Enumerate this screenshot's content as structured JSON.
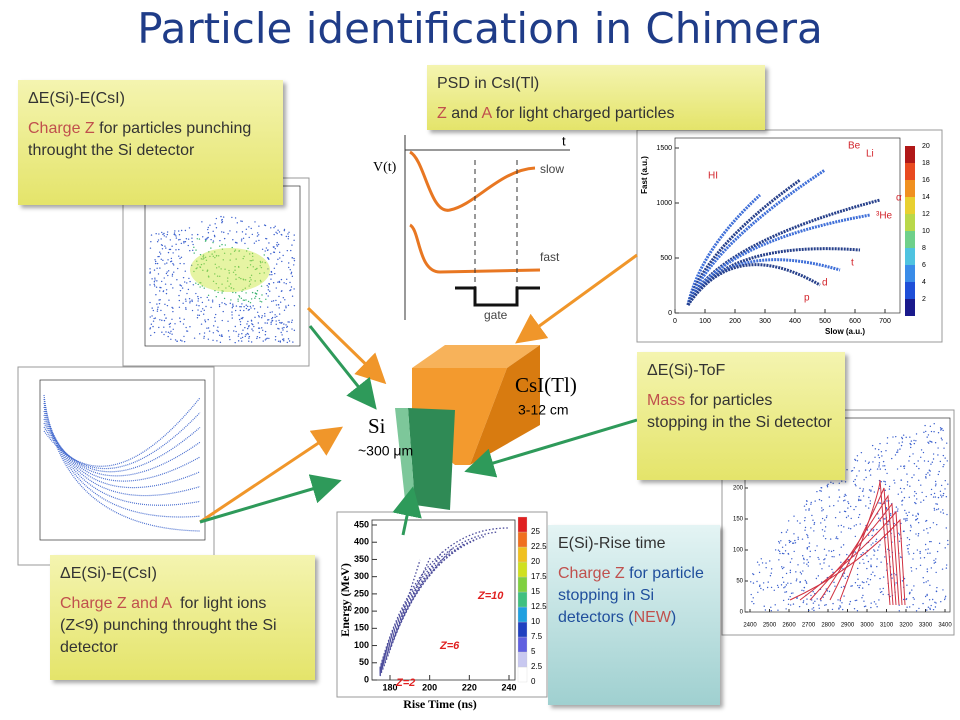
{
  "title": "Particle identification in Chimera",
  "boxes": [
    {
      "heading": "ΔE(Si)-E(CsI)",
      "body": [
        {
          "text": "Charge Z",
          "color": "#c0504d"
        },
        {
          "text": " for particles punching throught the Si detector",
          "color": "#333333"
        }
      ]
    },
    {
      "heading": "PSD in CsI(Tl)",
      "body": [
        {
          "text": "Z",
          "color": "#c0504d"
        },
        {
          "text": " and ",
          "color": "#333333"
        },
        {
          "text": "A",
          "color": "#c0504d"
        },
        {
          "text": " for light charged particles",
          "color": "#333333"
        }
      ]
    },
    {
      "heading": "ΔE(Si)-ToF",
      "body": [
        {
          "text": "Mass",
          "color": "#c0504d"
        },
        {
          "text": " for particles stopping in the Si detector",
          "color": "#333333"
        }
      ]
    },
    {
      "heading": "ΔE(Si)-E(CsI)",
      "body": [
        {
          "text": "Charge Z and A",
          "color": "#c0504d"
        },
        {
          "text": "  for light ions (Z<9) punching throught the Si detector",
          "color": "#333333"
        }
      ]
    },
    {
      "heading": "E(Si)-Rise time",
      "body": [
        {
          "text": "Charge Z",
          "color": "#c0504d"
        },
        {
          "text": " for particle stopping in Si detectors (",
          "color": "#1f4e9c"
        },
        {
          "text": "NEW",
          "color": "#c0504d"
        },
        {
          "text": ")",
          "color": "#1f4e9c"
        }
      ]
    }
  ],
  "detector": {
    "csi": "CsI(Tl)",
    "csi_size": "3-12 cm",
    "si": "Si",
    "si_size": "~300 μm"
  },
  "psd": {
    "vt": "V(t)",
    "t": "t",
    "slow": "slow",
    "fast": "fast",
    "gate": "gate"
  },
  "pid_plot": {
    "x_label": "Slow (a.u.)",
    "y_label": "Fast (a.u.)",
    "xticks": [
      0,
      100,
      200,
      300,
      400,
      500,
      600,
      700
    ],
    "yticks": [
      0,
      500,
      1000,
      1500
    ],
    "colorbar": [
      2,
      4,
      6,
      8,
      10,
      12,
      14,
      16,
      18,
      20
    ],
    "particles": [
      "HI",
      "Be",
      "Li",
      "α",
      "³He",
      "t",
      "d",
      "p"
    ]
  },
  "rise_plot": {
    "x_label": "Rise Time (ns)",
    "y_label": "Energy (MeV)",
    "xticks": [
      180,
      200,
      220,
      240
    ],
    "yticks": [
      0,
      50,
      100,
      150,
      200,
      250,
      300,
      350,
      400,
      450
    ],
    "colorbar": [
      0,
      2.5,
      5,
      7.5,
      10,
      12.5,
      15,
      17.5,
      20,
      22.5,
      25
    ],
    "zlabels": [
      "Z=10",
      "Z=6",
      "Z=2"
    ]
  },
  "tof_plot": {
    "xticks": [
      2400,
      2500,
      2600,
      2700,
      2800,
      2900,
      3000,
      3100,
      3200,
      3300,
      3400
    ],
    "yticks": [
      0,
      50,
      100,
      150,
      200,
      250
    ]
  }
}
